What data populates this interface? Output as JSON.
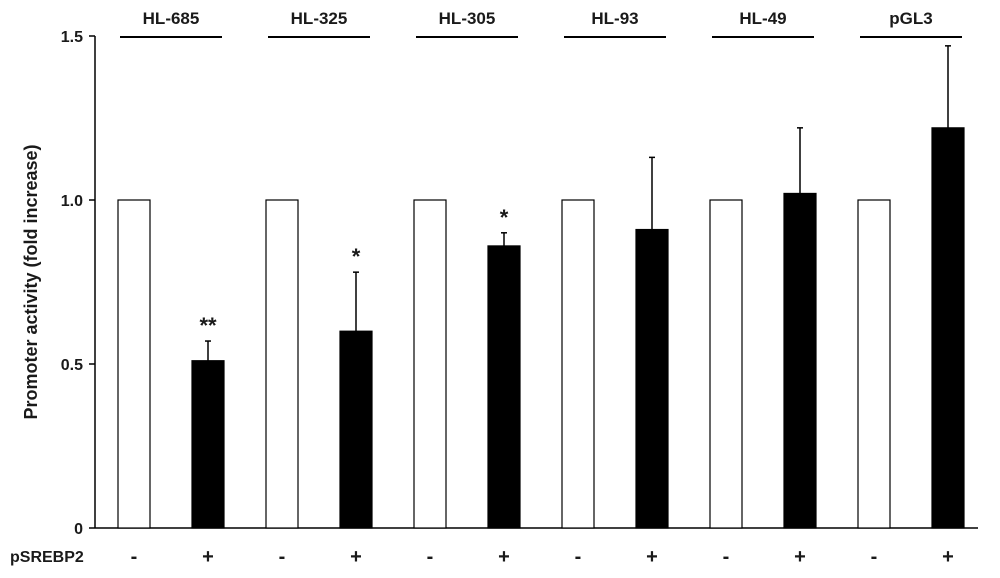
{
  "chart_data": {
    "type": "bar",
    "ylabel": "Promoter activity (fold increase)",
    "ylim": [
      0,
      1.5
    ],
    "yticks": [
      {
        "value": 0,
        "label": "0"
      },
      {
        "value": 0.5,
        "label": "0.5"
      },
      {
        "value": 1.0,
        "label": "1.0"
      },
      {
        "value": 1.5,
        "label": "1.5"
      }
    ],
    "treatment_label": "pSREBP2",
    "groups": [
      {
        "name": "HL-685",
        "bars": [
          {
            "treatment": "-",
            "value": 1.0,
            "error": 0,
            "color": "#ffffff",
            "annotation": ""
          },
          {
            "treatment": "+",
            "value": 0.51,
            "error": 0.06,
            "color": "#000000",
            "annotation": "**"
          }
        ]
      },
      {
        "name": "HL-325",
        "bars": [
          {
            "treatment": "-",
            "value": 1.0,
            "error": 0,
            "color": "#ffffff",
            "annotation": ""
          },
          {
            "treatment": "+",
            "value": 0.6,
            "error": 0.18,
            "color": "#000000",
            "annotation": "*"
          }
        ]
      },
      {
        "name": "HL-305",
        "bars": [
          {
            "treatment": "-",
            "value": 1.0,
            "error": 0,
            "color": "#ffffff",
            "annotation": ""
          },
          {
            "treatment": "+",
            "value": 0.86,
            "error": 0.04,
            "color": "#000000",
            "annotation": "*"
          }
        ]
      },
      {
        "name": "HL-93",
        "bars": [
          {
            "treatment": "-",
            "value": 1.0,
            "error": 0,
            "color": "#ffffff",
            "annotation": ""
          },
          {
            "treatment": "+",
            "value": 0.91,
            "error": 0.22,
            "color": "#000000",
            "annotation": ""
          }
        ]
      },
      {
        "name": "HL-49",
        "bars": [
          {
            "treatment": "-",
            "value": 1.0,
            "error": 0,
            "color": "#ffffff",
            "annotation": ""
          },
          {
            "treatment": "+",
            "value": 1.02,
            "error": 0.2,
            "color": "#000000",
            "annotation": ""
          }
        ]
      },
      {
        "name": "pGL3",
        "bars": [
          {
            "treatment": "-",
            "value": 1.0,
            "error": 0,
            "color": "#ffffff",
            "annotation": ""
          },
          {
            "treatment": "+",
            "value": 1.22,
            "error": 0.25,
            "color": "#000000",
            "annotation": ""
          }
        ]
      }
    ],
    "grid": false,
    "legend": "none"
  }
}
